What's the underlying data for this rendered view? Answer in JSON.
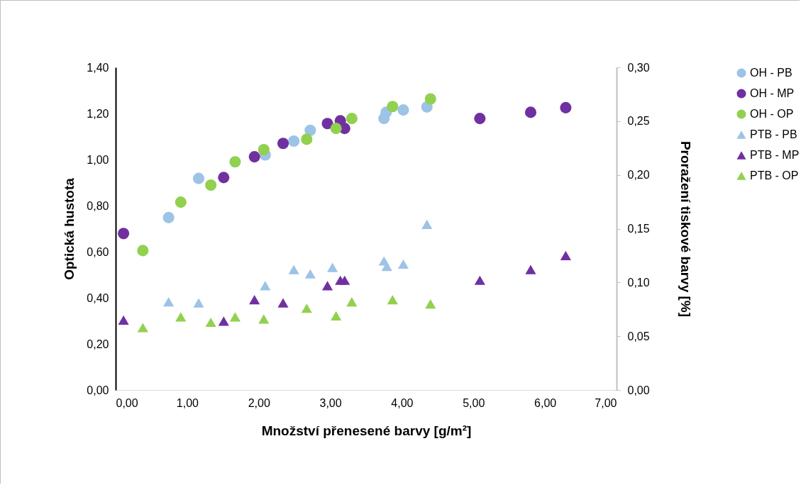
{
  "chart_data": {
    "type": "scatter",
    "xlabel": "Množství přenesené barvy [g/m²]",
    "ylabel": "Optická hustota",
    "y2label": "Proražení tiskové barvy [%]",
    "xlim": [
      0,
      7
    ],
    "xticks": [
      {
        "value": 0,
        "label": "0,00"
      },
      {
        "value": 1,
        "label": "1,00"
      },
      {
        "value": 2,
        "label": "2,00"
      },
      {
        "value": 3,
        "label": "3,00"
      },
      {
        "value": 4,
        "label": "4,00"
      },
      {
        "value": 5,
        "label": "5,00"
      },
      {
        "value": 6,
        "label": "6,00"
      },
      {
        "value": 7,
        "label": "7,00"
      }
    ],
    "ylim": [
      0,
      1.4
    ],
    "yticks": [
      {
        "value": 0,
        "label": "0,00"
      },
      {
        "value": 0.2,
        "label": "0,20"
      },
      {
        "value": 0.4,
        "label": "0,40"
      },
      {
        "value": 0.6,
        "label": "0,60"
      },
      {
        "value": 0.8,
        "label": "0,80"
      },
      {
        "value": 1,
        "label": "1,00"
      },
      {
        "value": 1.2,
        "label": "1,20"
      },
      {
        "value": 1.4,
        "label": "1,40"
      }
    ],
    "y2lim": [
      0,
      0.3
    ],
    "y2ticks": [
      {
        "value": 0,
        "label": "0,00"
      },
      {
        "value": 0.05,
        "label": "0,05"
      },
      {
        "value": 0.1,
        "label": "0,10"
      },
      {
        "value": 0.15,
        "label": "0,15"
      },
      {
        "value": 0.2,
        "label": "0,20"
      },
      {
        "value": 0.25,
        "label": "0,25"
      },
      {
        "value": 0.3,
        "label": "0,30"
      }
    ],
    "grid": false,
    "legend": "right",
    "series": [
      {
        "name": "OH - PB",
        "color": "#9dc3e6",
        "marker": "circle",
        "x": [
          0.74,
          1.16,
          2.09,
          2.49,
          2.72,
          3.75,
          3.78,
          4.02,
          4.35
        ],
        "values": [
          0.748,
          0.918,
          1.02,
          1.08,
          1.127,
          1.178,
          1.205,
          1.215,
          1.228
        ]
      },
      {
        "name": "OH - MP",
        "color": "#7030a0",
        "marker": "circle",
        "x": [
          0.11,
          1.51,
          1.94,
          2.34,
          2.96,
          3.14,
          3.2,
          5.09,
          5.8,
          6.29
        ],
        "values": [
          0.679,
          0.922,
          1.012,
          1.07,
          1.156,
          1.168,
          1.135,
          1.178,
          1.205,
          1.225
        ]
      },
      {
        "name": "OH - OP",
        "color": "#92d050",
        "marker": "circle",
        "x": [
          0.38,
          0.91,
          1.33,
          1.67,
          2.07,
          2.67,
          3.08,
          3.3,
          3.87,
          4.4
        ],
        "values": [
          0.605,
          0.815,
          0.889,
          0.99,
          1.043,
          1.088,
          1.135,
          1.178,
          1.23,
          1.263
        ]
      },
      {
        "name": "PTB - PB",
        "color": "#9dc3e6",
        "marker": "triangle",
        "axis": "y2",
        "x": [
          0.74,
          1.16,
          2.09,
          2.49,
          2.72,
          3.03,
          3.75,
          3.79,
          4.02,
          4.35
        ],
        "values": [
          0.082,
          0.081,
          0.097,
          0.112,
          0.108,
          0.114,
          0.12,
          0.115,
          0.117,
          0.154
        ]
      },
      {
        "name": "PTB - MP",
        "color": "#7030a0",
        "marker": "triangle",
        "axis": "y2",
        "x": [
          0.11,
          1.51,
          1.94,
          2.34,
          2.96,
          3.14,
          3.2,
          5.09,
          5.8,
          6.29
        ],
        "values": [
          0.065,
          0.064,
          0.084,
          0.081,
          0.097,
          0.102,
          0.102,
          0.102,
          0.112,
          0.125
        ]
      },
      {
        "name": "PTB - OP",
        "color": "#92d050",
        "marker": "triangle",
        "axis": "y2",
        "x": [
          0.38,
          0.91,
          1.33,
          1.67,
          2.07,
          2.67,
          3.08,
          3.3,
          3.87,
          4.4
        ],
        "values": [
          0.058,
          0.068,
          0.063,
          0.068,
          0.066,
          0.076,
          0.069,
          0.082,
          0.084,
          0.08
        ]
      }
    ]
  }
}
